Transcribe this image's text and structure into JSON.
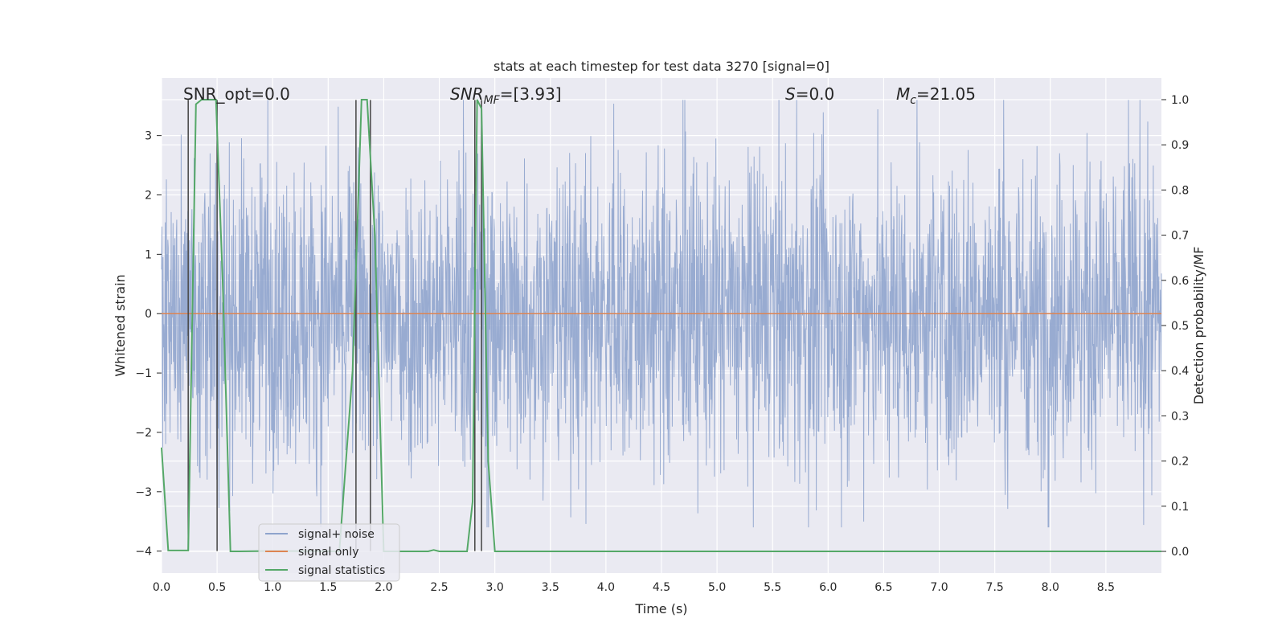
{
  "chart_data": {
    "type": "line",
    "title": "stats at each timestep for test data 3270 [signal=0]",
    "xlabel": "Time (s)",
    "ylabel_left": "Whitened strain",
    "ylabel_right": "Detection probability/MF",
    "xlim": [
      0.0,
      9.0
    ],
    "ylim_left": [
      -4.37,
      3.97
    ],
    "ylim_right": [
      -0.048,
      1.048
    ],
    "x_ticks": [
      "0.0",
      "0.5",
      "1.0",
      "1.5",
      "2.0",
      "2.5",
      "3.0",
      "3.5",
      "4.0",
      "4.5",
      "5.0",
      "5.5",
      "6.0",
      "6.5",
      "7.0",
      "7.5",
      "8.0",
      "8.5"
    ],
    "x_tick_values": [
      0.0,
      0.5,
      1.0,
      1.5,
      2.0,
      2.5,
      3.0,
      3.5,
      4.0,
      4.5,
      5.0,
      5.5,
      6.0,
      6.5,
      7.0,
      7.5,
      8.0,
      8.5
    ],
    "y_left_ticks": [
      "−4",
      "−3",
      "−2",
      "−1",
      "0",
      "1",
      "2",
      "3"
    ],
    "y_left_tick_values": [
      -4,
      -3,
      -2,
      -1,
      0,
      1,
      2,
      3
    ],
    "y_right_ticks": [
      "0.0",
      "0.1",
      "0.2",
      "0.3",
      "0.4",
      "0.5",
      "0.6",
      "0.7",
      "0.8",
      "0.9",
      "1.0"
    ],
    "y_right_tick_values": [
      0.0,
      0.1,
      0.2,
      0.3,
      0.4,
      0.5,
      0.6,
      0.7,
      0.8,
      0.9,
      1.0
    ],
    "grid": true,
    "annotations": {
      "snr_opt": "SNR_opt=0.0",
      "snr_mf_main": "SNR",
      "snr_mf_sub": "MF",
      "snr_mf_value": "=[3.93]",
      "s_sym": "S",
      "s_value": "=0.0",
      "mc_sym": "M",
      "mc_sub": "c",
      "mc_value": "=21.05"
    },
    "series": [
      {
        "name": "signal+ noise",
        "color": "#8fa4cd",
        "description": "whitened strain noise, approx gaussian amplitude ~1.3 with peaks to ±3.6",
        "amplitude_envelope": 1.3,
        "max_abs": 3.6,
        "sample_rate_hz": 300
      },
      {
        "name": "signal only",
        "color": "#dd8452",
        "x": [
          0.0,
          9.0
        ],
        "y": [
          0.0,
          0.0
        ]
      },
      {
        "name": "signal statistics",
        "color": "#55a868",
        "axis": "right",
        "x": [
          0.0,
          0.06,
          0.24,
          0.31,
          0.36,
          0.42,
          0.49,
          0.55,
          0.62,
          0.7,
          1.0,
          1.6,
          1.72,
          1.8,
          1.85,
          1.92,
          2.0,
          2.4,
          2.45,
          2.5,
          2.75,
          2.8,
          2.84,
          2.88,
          2.94,
          3.0,
          9.0
        ],
        "y": [
          0.23,
          0.002,
          0.002,
          0.99,
          1.0,
          1.0,
          1.0,
          0.6,
          0.0,
          0.0,
          0.001,
          0.0,
          0.4,
          1.0,
          1.0,
          0.7,
          0.0,
          0.0,
          0.003,
          0.0,
          0.0,
          0.11,
          1.0,
          0.98,
          0.2,
          0.0,
          0.0
        ]
      }
    ],
    "vertical_markers_x": [
      0.24,
      0.5,
      1.75,
      1.88,
      2.82,
      2.88
    ],
    "legend": {
      "placement": "lower-left",
      "entries": [
        {
          "label": "signal+ noise",
          "color": "#8fa4cd"
        },
        {
          "label": "signal only",
          "color": "#dd8452"
        },
        {
          "label": "signal statistics",
          "color": "#55a868"
        }
      ]
    },
    "colors": {
      "plot_background": "#eaeaf2",
      "grid": "#ffffff",
      "marker_line": "#444444"
    }
  }
}
